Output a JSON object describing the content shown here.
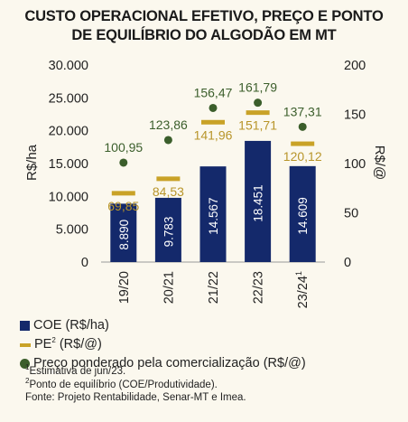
{
  "title": {
    "line1": "CUSTO OPERACIONAL EFETIVO, PREÇO E PONTO",
    "line2": "DE EQUILÍBRIO DO ALGODÃO EM MT"
  },
  "colors": {
    "coe": "#14296b",
    "pe": "#c9a227",
    "preco": "#3b5e2b",
    "pe_label": "#b8952a"
  },
  "chart_data": {
    "type": "bar",
    "categories": [
      "19/20",
      "20/21",
      "21/22",
      "22/23",
      "23/24"
    ],
    "category_superscripts": [
      "",
      "",
      "",
      "",
      "1"
    ],
    "y_left": {
      "label": "R$/ha",
      "range": [
        0,
        30000
      ],
      "ticks": [
        "0",
        "5.000",
        "10.000",
        "15.000",
        "20.000",
        "25.000",
        "30.000"
      ]
    },
    "y_right": {
      "label": "R$/@",
      "range": [
        0,
        200
      ],
      "ticks": [
        "0",
        "50",
        "100",
        "150",
        "200"
      ]
    },
    "series": [
      {
        "name": "COE (R$/ha)",
        "type": "bar",
        "axis": "left",
        "values": [
          8890,
          9783,
          14567,
          18451,
          14609
        ],
        "labels": [
          "8.890",
          "9.783",
          "14.567",
          "18.451",
          "14.609"
        ]
      },
      {
        "name": "PE² (R$/@)",
        "type": "marker-dash",
        "axis": "right",
        "values": [
          69.85,
          84.53,
          141.96,
          151.71,
          120.12
        ],
        "labels": [
          "69,85",
          "84,53",
          "141,96",
          "151,71",
          "120,12"
        ]
      },
      {
        "name": "Preço ponderado pela comercialização (R$/@)",
        "type": "marker-dot",
        "axis": "right",
        "values": [
          100.95,
          123.86,
          156.47,
          161.79,
          137.31
        ],
        "labels": [
          "100,95",
          "123,86",
          "156,47",
          "161,79",
          "137,31"
        ]
      }
    ],
    "legend": [
      "COE (R$/ha)",
      "PE² (R$/@)",
      "Preço ponderado pela comercialização (R$/@)"
    ],
    "legend_position": "bottom-left"
  },
  "legend": {
    "coe": "COE (R$/ha)",
    "pe_prefix": "PE",
    "pe_sup": "2",
    "pe_suffix": " (R$/@)",
    "preco": "Preço ponderado pela comercialização (R$/@)"
  },
  "notes": {
    "n1_sup": "1",
    "n1": "Estimativa de jun/23.",
    "n2_sup": "2",
    "n2": "Ponto de equilíbrio (COE/Produtividade).",
    "source": "Fonte: Projeto Rentabilidade, Senar-MT e Imea."
  }
}
